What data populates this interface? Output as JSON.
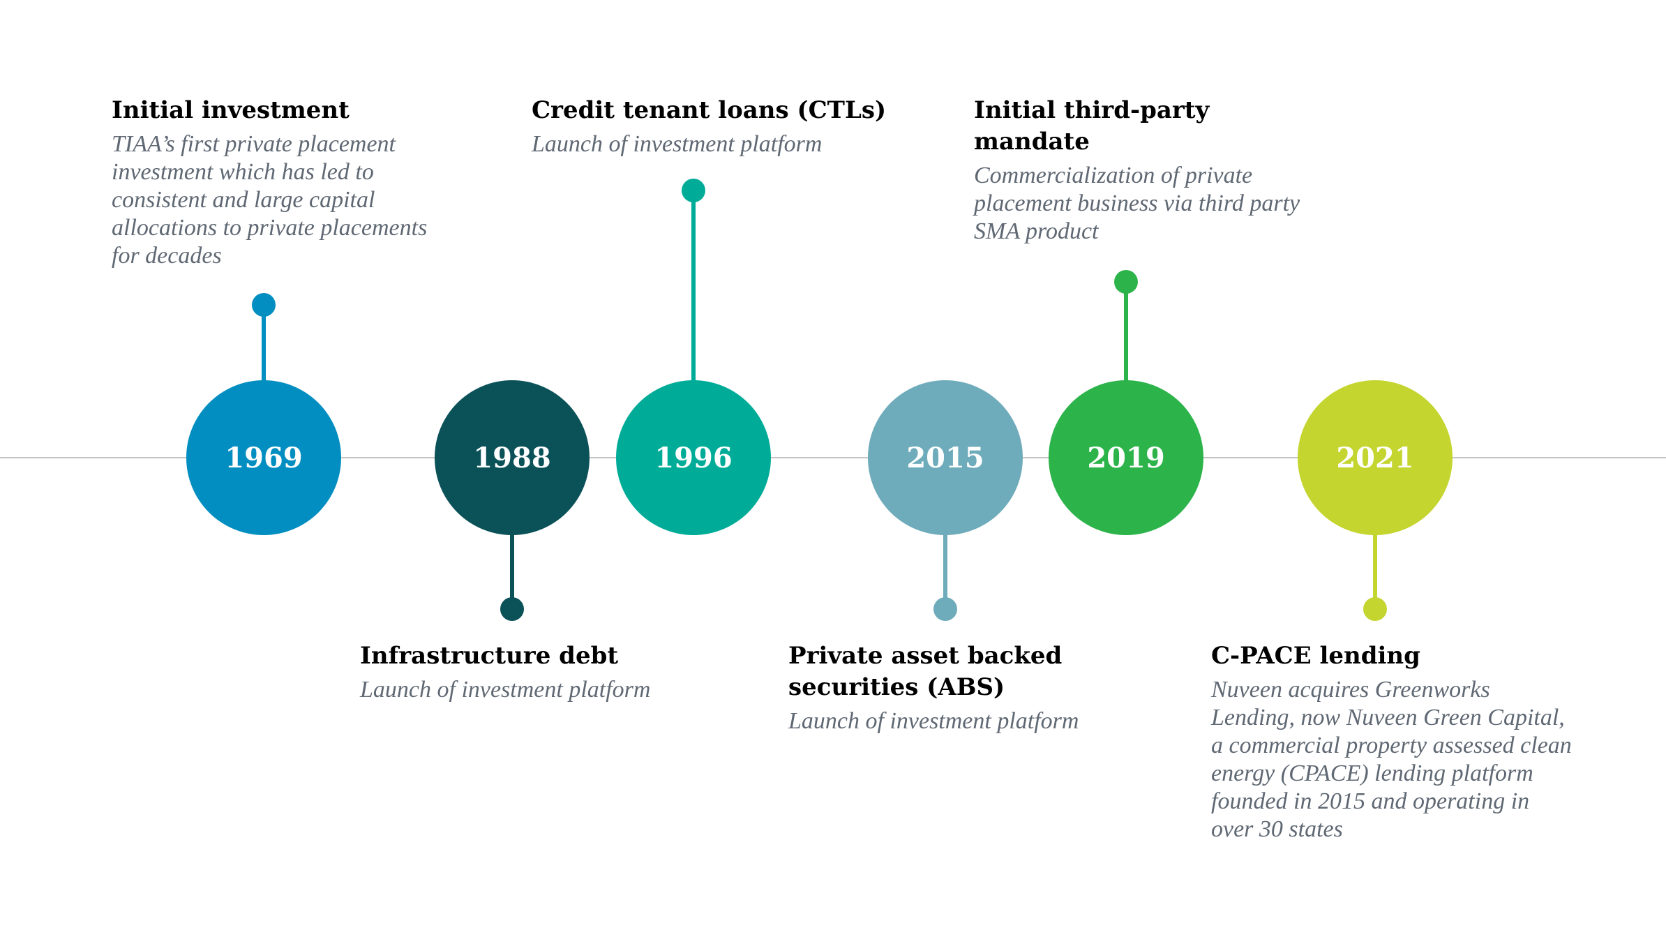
{
  "milestones": [
    {
      "year": "1969",
      "title": "Initial investment",
      "description": "TIAA’s first private placement investment which has led to consistent and large capital allocations to private placements for decades",
      "color": "#028ec0",
      "position": "above"
    },
    {
      "year": "1988",
      "title": "Infrastructure debt",
      "description": "Launch of investment platform",
      "color": "#0a5158",
      "position": "below"
    },
    {
      "year": "1996",
      "title": "Credit tenant loans (CTLs)",
      "description": "Launch of investment platform",
      "color": "#00ac98",
      "position": "above"
    },
    {
      "year": "2015",
      "title": "Private asset backed securities (ABS)",
      "description": "Launch of investment platform",
      "color": "#6eabbb",
      "position": "below"
    },
    {
      "year": "2019",
      "title": "Initial third-party mandate",
      "description": "Commercialization of private placement business via third party SMA product",
      "color": "#2cb34a",
      "position": "above"
    },
    {
      "year": "2021",
      "title": "C-PACE lending",
      "description": "Nuveen acquires Greenworks Lending, now Nuveen Green Capital, a commercial property assessed clean energy (CPACE) lending platform founded in 2015 and operating in over 30 states",
      "color": "#c4d52f",
      "position": "below"
    }
  ]
}
